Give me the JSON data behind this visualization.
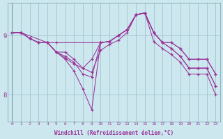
{
  "xlabel": "Windchill (Refroidissement éolien,°C)",
  "bg_color": "#cce8ee",
  "line_color": "#993399",
  "grid_color": "#99bbcc",
  "ytick_labels": [
    "8",
    "9"
  ],
  "ytick_vals": [
    8.0,
    9.0
  ],
  "ylim": [
    7.55,
    9.55
  ],
  "xlim": [
    -0.5,
    23.5
  ],
  "xticks": [
    0,
    1,
    2,
    3,
    4,
    5,
    6,
    7,
    8,
    9,
    10,
    11,
    12,
    13,
    14,
    15,
    16,
    17,
    18,
    19,
    20,
    21,
    22,
    23
  ],
  "series": [
    {
      "x": [
        0,
        1,
        2,
        3,
        4,
        5,
        10,
        11,
        12,
        13,
        14,
        15,
        16,
        17,
        18,
        19,
        20,
        21,
        22,
        23
      ],
      "y": [
        9.05,
        9.05,
        8.95,
        8.88,
        8.88,
        8.88,
        8.88,
        8.9,
        9.0,
        9.1,
        9.35,
        9.38,
        9.05,
        8.88,
        8.88,
        8.78,
        8.6,
        8.6,
        8.6,
        8.35
      ]
    },
    {
      "x": [
        0,
        1,
        2,
        3,
        4,
        5,
        6,
        7,
        8,
        9,
        10,
        11,
        12,
        13,
        14,
        15,
        16,
        17,
        18,
        19,
        20,
        21,
        22,
        23
      ],
      "y": [
        9.05,
        9.05,
        8.95,
        8.88,
        8.88,
        8.72,
        8.72,
        8.6,
        8.45,
        8.6,
        8.88,
        8.9,
        9.0,
        9.1,
        9.35,
        9.38,
        9.05,
        8.88,
        8.88,
        8.78,
        8.6,
        8.6,
        8.6,
        8.35
      ]
    },
    {
      "x": [
        0,
        1,
        2,
        3,
        4,
        5,
        6,
        7,
        8,
        9,
        10,
        11,
        12,
        13,
        14,
        15,
        16,
        17,
        18,
        19,
        20,
        21,
        22,
        23
      ],
      "y": [
        9.05,
        9.05,
        8.95,
        8.88,
        8.88,
        8.72,
        8.65,
        8.55,
        8.35,
        8.3,
        8.88,
        8.9,
        9.0,
        9.1,
        9.35,
        9.38,
        9.05,
        8.88,
        8.78,
        8.65,
        8.45,
        8.45,
        8.45,
        8.15
      ]
    },
    {
      "x": [
        0,
        1,
        2,
        3,
        4,
        5,
        6,
        7,
        8,
        9,
        10,
        11,
        12,
        13,
        14,
        15,
        16,
        17,
        18,
        19,
        20,
        21,
        22,
        23
      ],
      "y": [
        9.05,
        9.05,
        8.95,
        8.88,
        8.88,
        8.72,
        8.6,
        8.4,
        8.1,
        7.75,
        8.88,
        8.9,
        9.0,
        9.1,
        9.35,
        9.38,
        9.05,
        8.88,
        8.78,
        8.65,
        8.45,
        8.45,
        8.45,
        8.15
      ]
    },
    {
      "x": [
        0,
        1,
        4,
        5,
        6,
        7,
        8,
        9,
        10,
        11,
        12,
        13,
        14,
        15,
        16,
        17,
        18,
        19,
        20,
        21,
        22,
        23
      ],
      "y": [
        9.05,
        9.05,
        8.88,
        8.72,
        8.62,
        8.52,
        8.45,
        8.38,
        8.75,
        8.85,
        8.92,
        9.05,
        9.35,
        9.38,
        8.9,
        8.78,
        8.68,
        8.55,
        8.35,
        8.35,
        8.35,
        8.0
      ]
    }
  ]
}
